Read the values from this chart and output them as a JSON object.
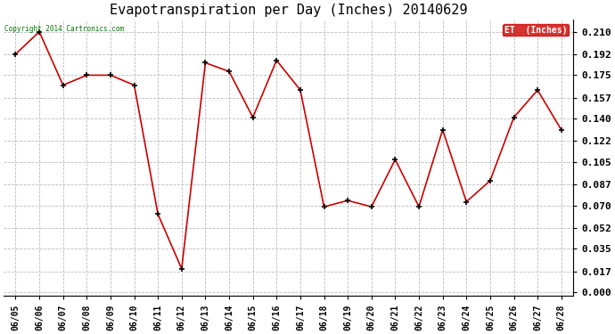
{
  "title": "Evapotranspiration per Day (Inches) 20140629",
  "copyright_text": "Copyright 2014 Cartronics.com",
  "legend_label": "ET  (Inches)",
  "dates": [
    "06/05",
    "06/06",
    "06/07",
    "06/08",
    "06/09",
    "06/10",
    "06/11",
    "06/12",
    "06/13",
    "06/14",
    "06/15",
    "06/16",
    "06/17",
    "06/18",
    "06/19",
    "06/20",
    "06/21",
    "06/22",
    "06/23",
    "06/24",
    "06/25",
    "06/26",
    "06/27",
    "06/28"
  ],
  "values": [
    0.192,
    0.21,
    0.167,
    0.175,
    0.175,
    0.167,
    0.063,
    0.019,
    0.185,
    0.178,
    0.141,
    0.187,
    0.163,
    0.069,
    0.074,
    0.069,
    0.107,
    0.069,
    0.131,
    0.073,
    0.09,
    0.141,
    0.163,
    0.131
  ],
  "line_color": "#cc0000",
  "marker_color": "#000000",
  "bg_color": "#ffffff",
  "grid_color": "#bbbbbb",
  "title_fontsize": 11,
  "yticks": [
    0.0,
    0.017,
    0.035,
    0.052,
    0.07,
    0.087,
    0.105,
    0.122,
    0.14,
    0.157,
    0.175,
    0.192,
    0.21
  ],
  "ylim": [
    -0.003,
    0.22
  ],
  "copyright_color": "#007700",
  "legend_bg": "#cc0000",
  "legend_text_color": "#ffffff"
}
